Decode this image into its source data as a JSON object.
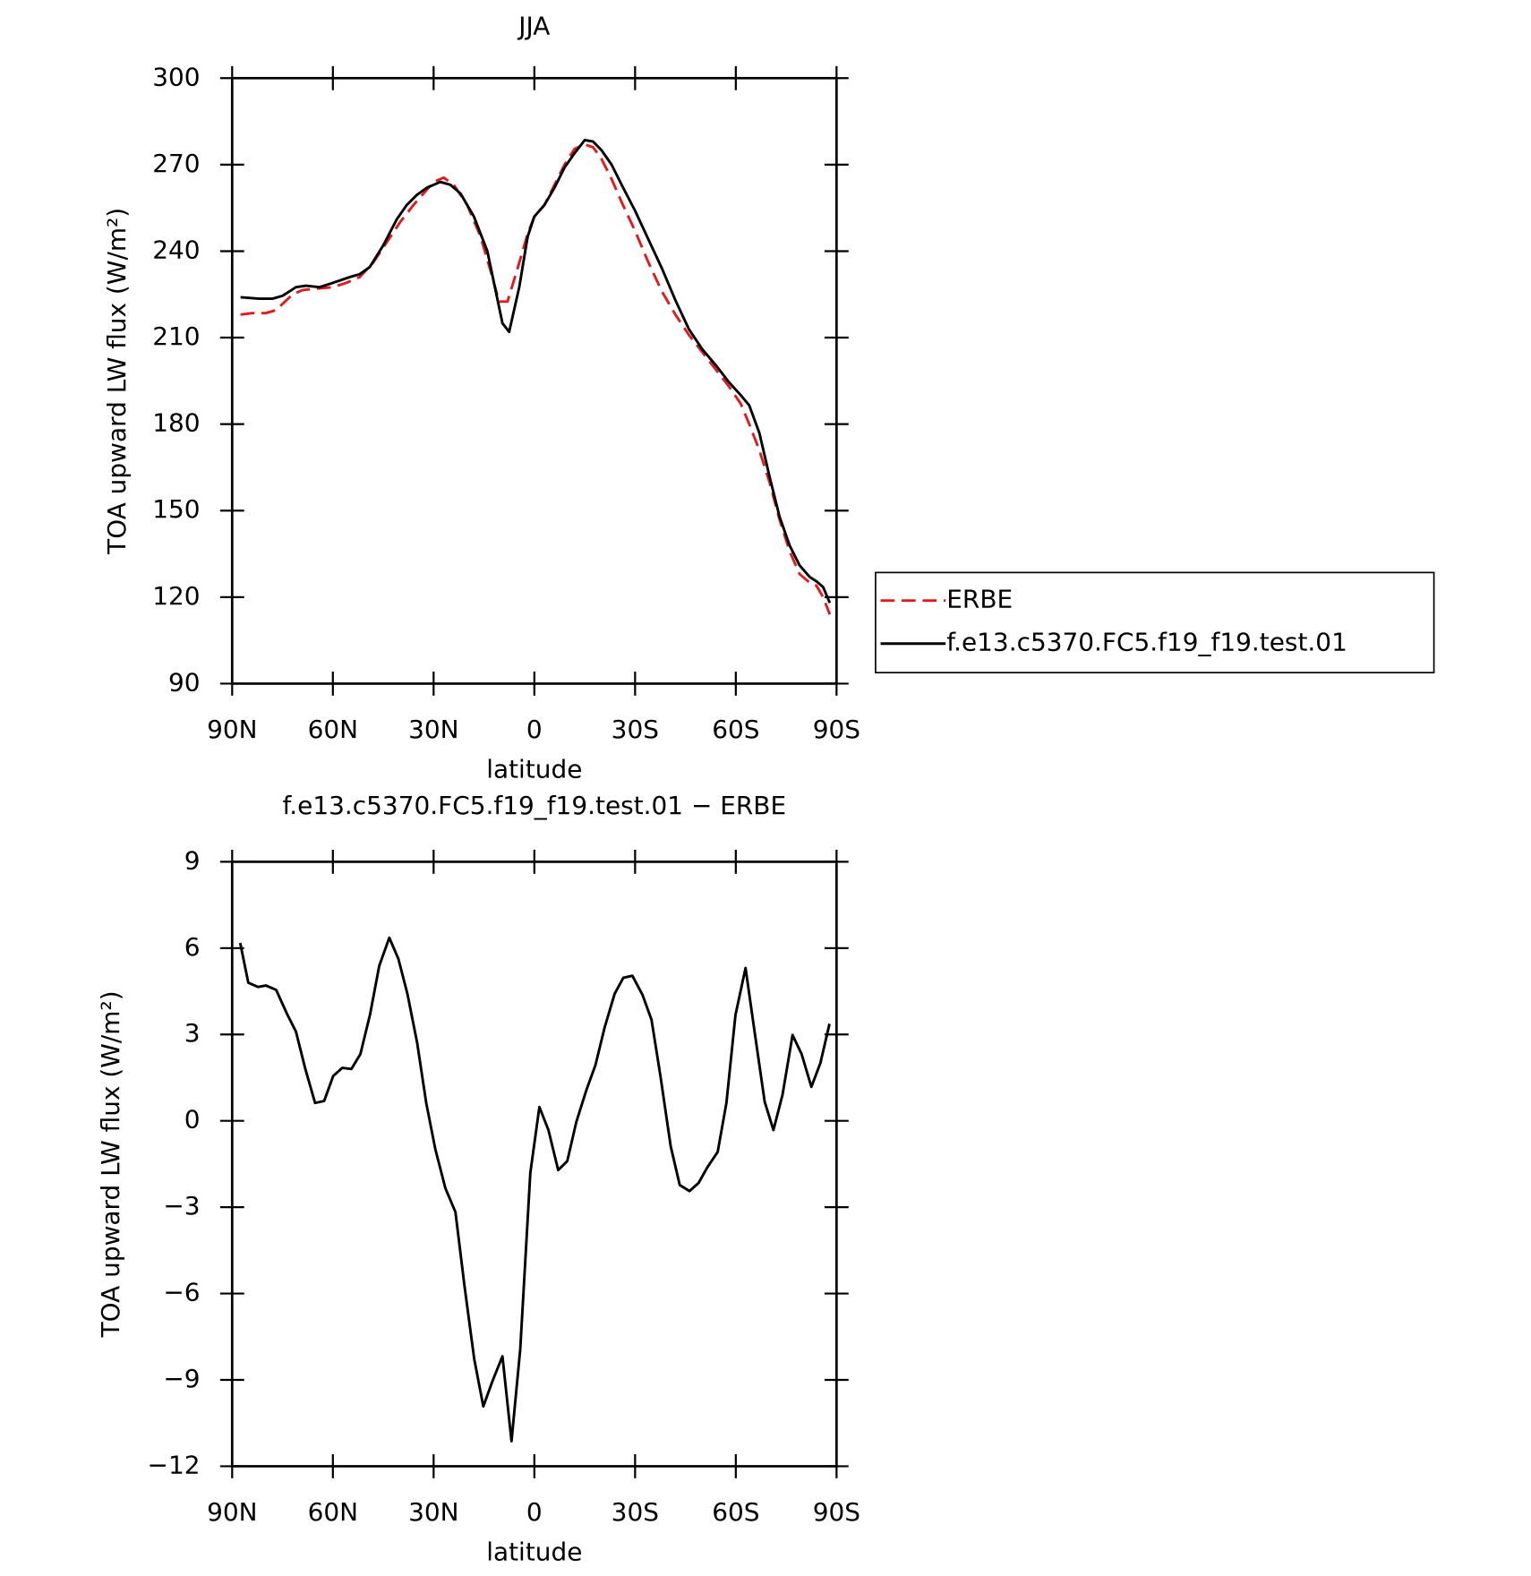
{
  "chart_data": [
    {
      "type": "line",
      "title": "JJA",
      "ylabel": "TOA upward LW flux (W/m²)",
      "xlabel": "latitude",
      "xlim": [
        90,
        -90
      ],
      "xticks": [
        {
          "value": 90,
          "label": "90N"
        },
        {
          "value": 60,
          "label": "60N"
        },
        {
          "value": 30,
          "label": "30N"
        },
        0,
        {
          "value": -30,
          "label": "30S"
        },
        {
          "value": -60,
          "label": "60S"
        },
        {
          "value": -90,
          "label": "90S"
        }
      ],
      "ylim": [
        90,
        300
      ],
      "yticks": [
        90,
        120,
        150,
        180,
        210,
        240,
        270,
        300
      ],
      "legend": "outside-right",
      "series": [
        {
          "name": "ERBE",
          "color": "#e31a1c",
          "dash": true,
          "x": [
            87.5,
            84,
            80,
            77,
            72,
            69,
            65,
            60,
            56,
            52,
            48,
            44,
            40,
            36,
            33,
            30,
            27,
            24,
            20,
            16,
            13,
            10.5,
            8,
            5,
            2,
            0,
            -3,
            -6,
            -9,
            -12,
            -15,
            -17.5,
            -20,
            -23,
            -26,
            -30,
            -34,
            -38,
            -42,
            -46,
            -50,
            -54,
            -58,
            -61.5,
            -64,
            -67,
            -70,
            -73,
            -76,
            -79,
            -82,
            -84,
            -86,
            -88
          ],
          "values": [
            218,
            218.5,
            218.5,
            219.5,
            225,
            226.5,
            227,
            227.5,
            229,
            231,
            236,
            243,
            250,
            256,
            260,
            264,
            265.5,
            263,
            256,
            245,
            233,
            222.5,
            222.5,
            234,
            246,
            252,
            256,
            263,
            270,
            275.5,
            277,
            276,
            272,
            265,
            257,
            247,
            236,
            226,
            218,
            211,
            205,
            199,
            193,
            187,
            180,
            171,
            160,
            147,
            136,
            128,
            125,
            124,
            120,
            114
          ]
        },
        {
          "name": "f.e13.c5370.FC5.f19_f19.test.01",
          "color": "#000000",
          "dash": false,
          "x": [
            87.5,
            82,
            78,
            75,
            71,
            68,
            64,
            60,
            55,
            52,
            49,
            45,
            41,
            38,
            35,
            32,
            30,
            28,
            25,
            22,
            18,
            14,
            9.5,
            7.5,
            4.5,
            2,
            0,
            -3,
            -6,
            -9,
            -12,
            -15,
            -17.5,
            -20,
            -23,
            -26,
            -30,
            -34,
            -38,
            -42,
            -46,
            -50,
            -54,
            -58,
            -61.5,
            -64,
            -67,
            -70,
            -73,
            -76,
            -79,
            -82,
            -84,
            -86,
            -88
          ],
          "values": [
            224,
            223.5,
            223.5,
            224.5,
            227.5,
            228,
            227.5,
            229,
            231,
            232,
            234.5,
            242,
            251,
            256,
            259.5,
            262,
            263,
            264,
            263,
            260,
            252,
            240,
            215,
            212,
            227.5,
            245,
            252,
            256,
            262,
            269,
            274,
            278.5,
            278,
            275,
            270,
            263,
            254,
            244,
            234,
            223,
            213,
            206,
            200.5,
            194.5,
            190,
            186.5,
            177,
            162,
            148,
            138,
            131,
            127,
            125.5,
            123.5,
            118
          ]
        }
      ]
    },
    {
      "type": "line",
      "title": "f.e13.c5370.FC5.f19_f19.test.01 − ERBE",
      "ylabel": "TOA upward LW flux (W/m²)",
      "xlabel": "latitude",
      "xlim": [
        90,
        -90
      ],
      "xticks": [
        {
          "value": 90,
          "label": "90N"
        },
        {
          "value": 60,
          "label": "60N"
        },
        {
          "value": 30,
          "label": "30N"
        },
        0,
        {
          "value": -30,
          "label": "30S"
        },
        {
          "value": -60,
          "label": "60S"
        },
        {
          "value": -90,
          "label": "90S"
        }
      ],
      "ylim": [
        -12,
        9
      ],
      "yticks": [
        {
          "value": -12,
          "label": "−12"
        },
        {
          "value": -9,
          "label": "−9"
        },
        {
          "value": -6,
          "label": "−6"
        },
        {
          "value": -3,
          "label": "−3"
        },
        0,
        3,
        6,
        9
      ],
      "series": [
        {
          "color": "#000000",
          "dash": false,
          "x": [
            87.6,
            85.2,
            82.3,
            79.9,
            76.9,
            73.6,
            71,
            68.2,
            65.3,
            62.6,
            59.9,
            57.2,
            54.5,
            51.8,
            48.9,
            46.2,
            43.2,
            40.5,
            37.8,
            34.9,
            32.2,
            29.5,
            26.5,
            23.5,
            20.8,
            17.9,
            15.2,
            12.5,
            9.5,
            6.8,
            4.2,
            1.2,
            -1.5,
            -4.2,
            -7.1,
            -9.8,
            -12.5,
            -15.5,
            -18.2,
            -20.9,
            -23.9,
            -26.5,
            -29.2,
            -32.2,
            -34.9,
            -37.6,
            -40.6,
            -43.3,
            -46.2,
            -48.9,
            -51.6,
            -54.6,
            -57.2,
            -59.9,
            -62.9,
            -65.6,
            -68.6,
            -71.2,
            -73.9,
            -76.9,
            -79.6,
            -82.5,
            -85.2,
            -87.9
          ],
          "values": [
            6.18,
            4.8,
            4.65,
            4.7,
            4.55,
            3.7,
            3.1,
            1.8,
            0.62,
            0.69,
            1.56,
            1.84,
            1.8,
            2.32,
            3.71,
            5.38,
            6.36,
            5.63,
            4.41,
            2.71,
            0.62,
            -0.98,
            -2.34,
            -3.17,
            -5.74,
            -8.28,
            -9.92,
            -9.05,
            -8.18,
            -11.13,
            -7.93,
            -1.81,
            0.48,
            -0.32,
            -1.71,
            -1.4,
            -0.04,
            1.07,
            1.94,
            3.23,
            4.41,
            4.97,
            5.04,
            4.38,
            3.51,
            1.52,
            -0.88,
            -2.23,
            -2.44,
            -2.16,
            -1.6,
            -1.08,
            0.62,
            3.68,
            5.31,
            3.09,
            0.66,
            -0.32,
            0.9,
            2.98,
            2.32,
            1.18,
            2.01,
            3.37
          ]
        }
      ]
    }
  ]
}
